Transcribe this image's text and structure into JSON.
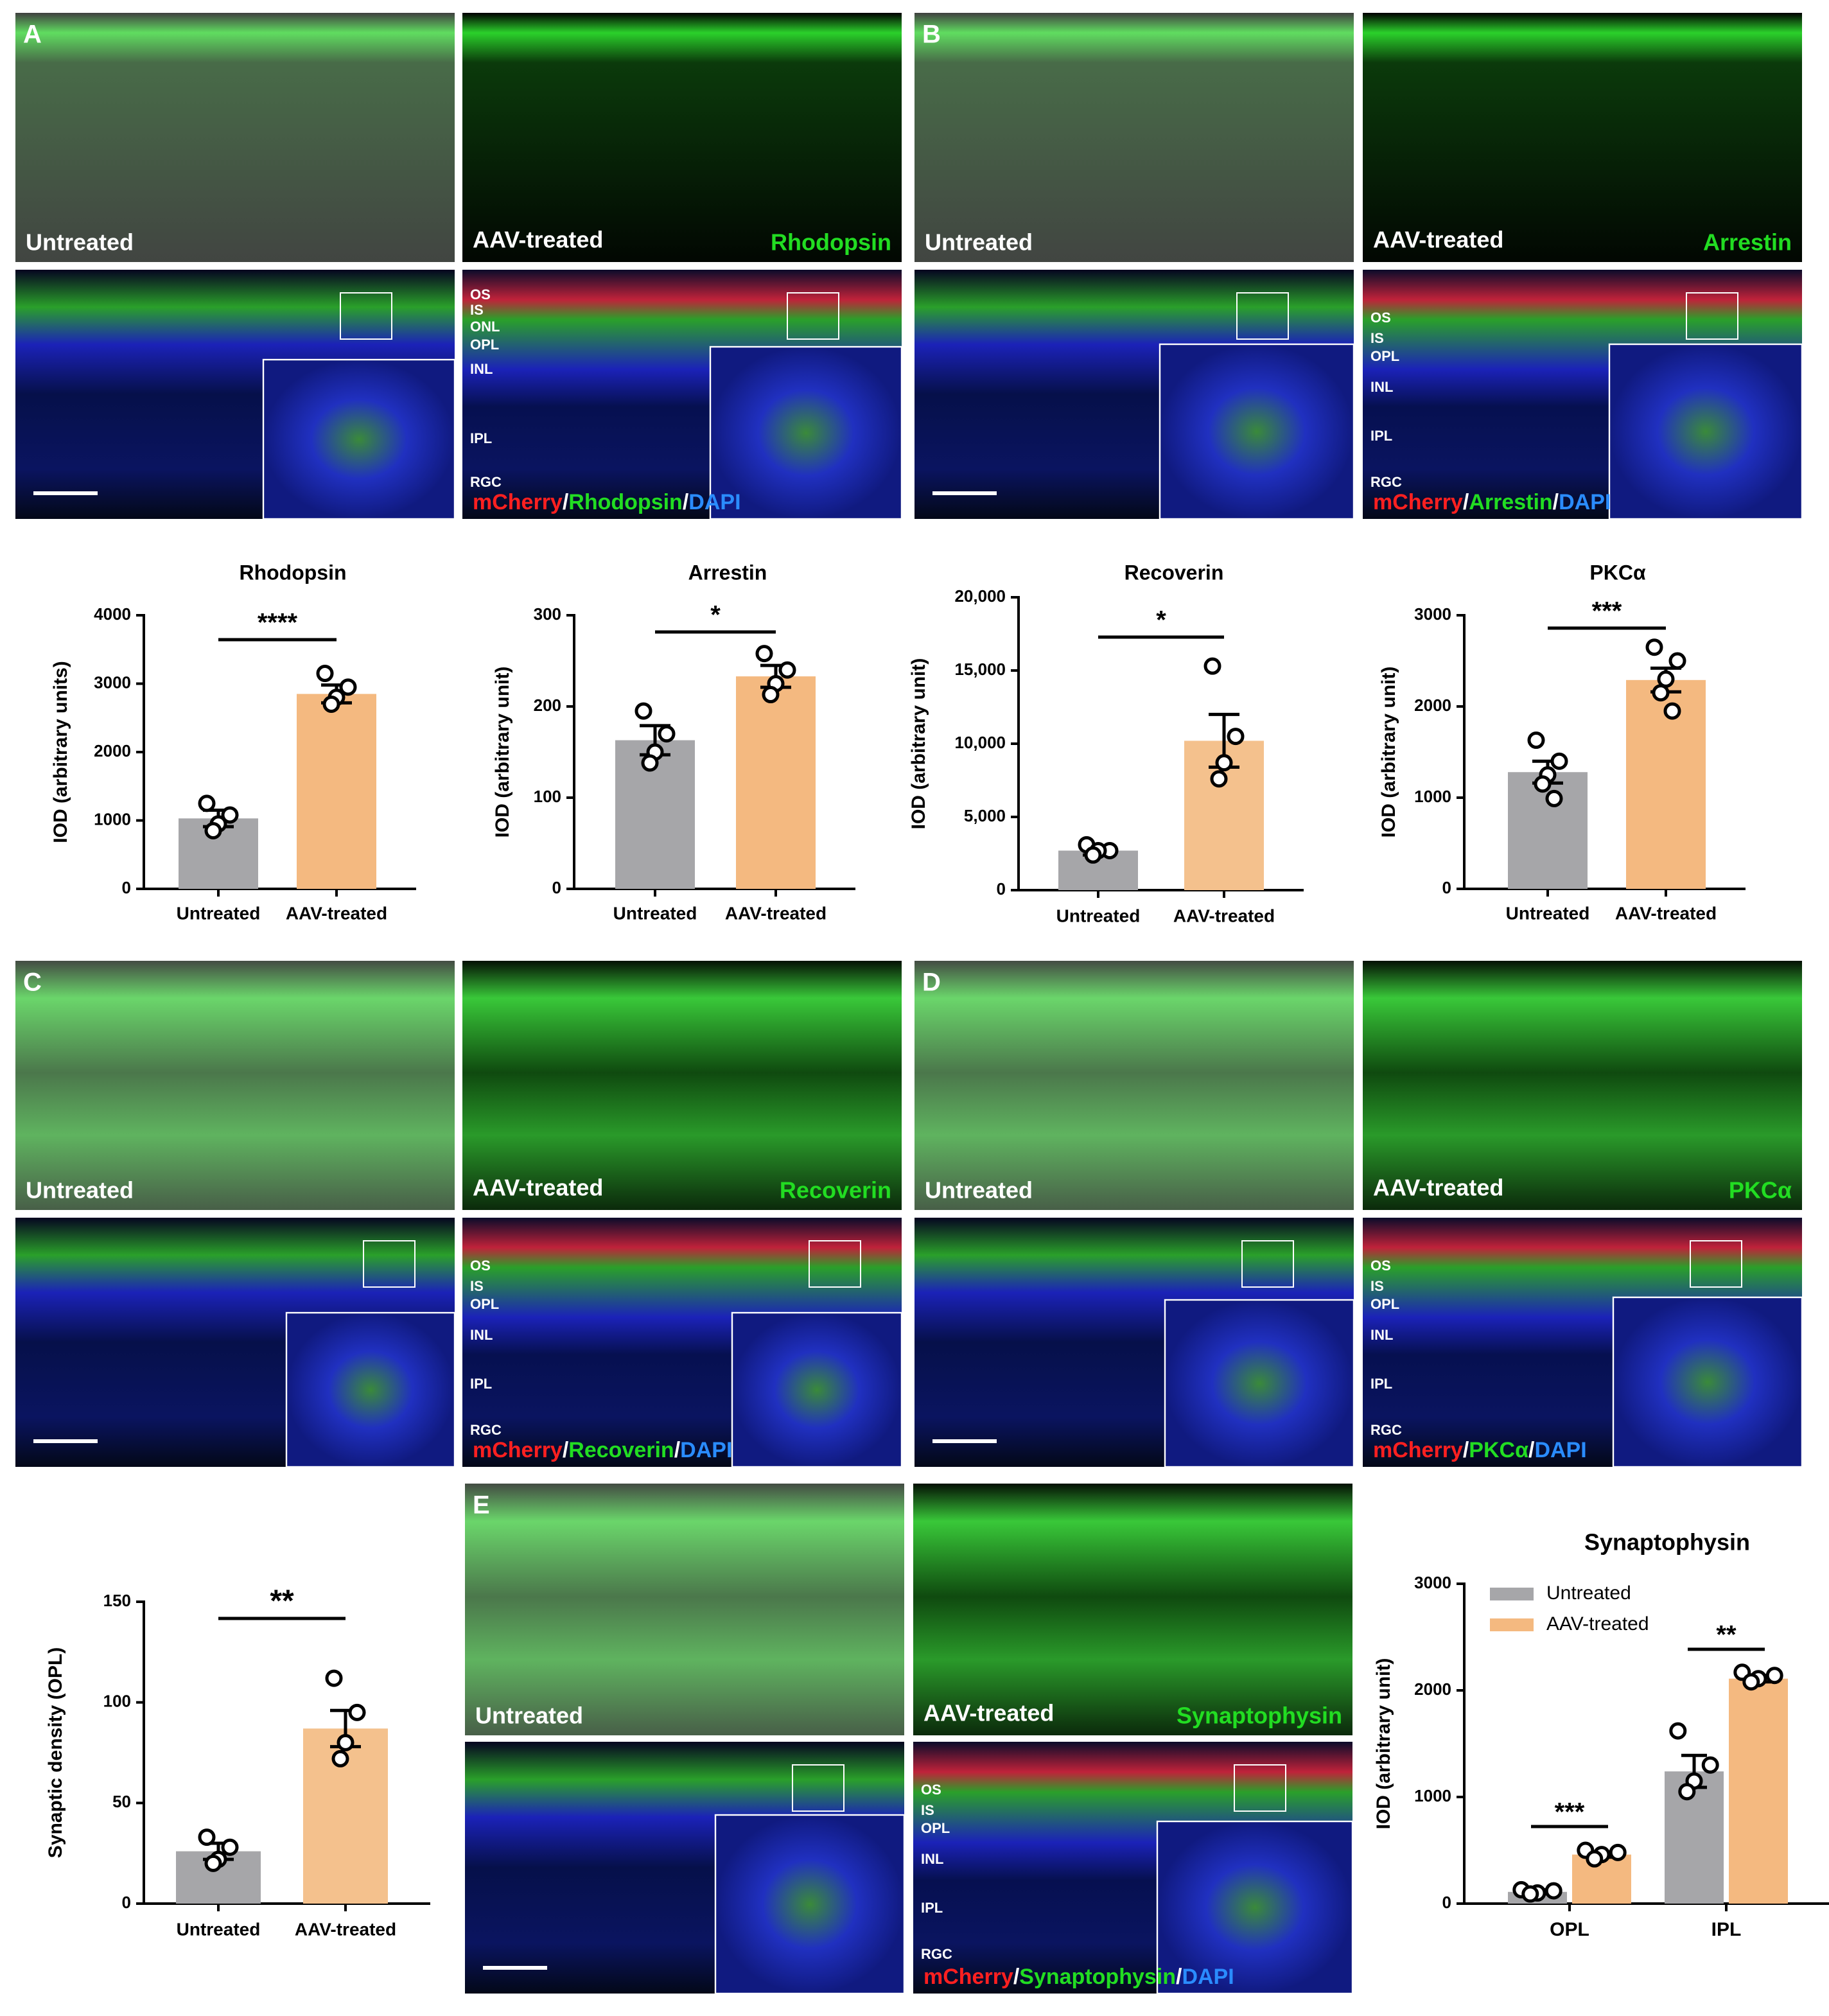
{
  "panels": [
    {
      "letter": "A",
      "untreated": "Untreated",
      "treated": "AAV-treated",
      "marker": "Rhodopsin",
      "layers": [
        "OS",
        "IS",
        "ONL",
        "OPL",
        "INL",
        "IPL",
        "RGC"
      ],
      "stain": [
        "mCherry",
        "/",
        "Rhodopsin",
        "/",
        "DAPI"
      ]
    },
    {
      "letter": "B",
      "untreated": "Untreated",
      "treated": "AAV-treated",
      "marker": "Arrestin",
      "layers": [
        "OS",
        "IS",
        "OPL",
        "INL",
        "IPL",
        "RGC"
      ],
      "stain": [
        "mCherry",
        "/",
        "Arrestin",
        "/",
        "DAPI"
      ]
    },
    {
      "letter": "C",
      "untreated": "Untreated",
      "treated": "AAV-treated",
      "marker": "Recoverin",
      "layers": [
        "OS",
        "IS",
        "OPL",
        "INL",
        "IPL",
        "RGC"
      ],
      "stain": [
        "mCherry",
        "/",
        "Recoverin",
        "/",
        "DAPI"
      ]
    },
    {
      "letter": "D",
      "untreated": "Untreated",
      "treated": "AAV-treated",
      "marker": "PKCα",
      "layers": [
        "OS",
        "IS",
        "OPL",
        "INL",
        "IPL",
        "RGC"
      ],
      "stain": [
        "mCherry",
        "/",
        "PKCα",
        "/",
        "DAPI"
      ]
    },
    {
      "letter": "E",
      "untreated": "Untreated",
      "treated": "AAV-treated",
      "marker": "Synaptophysin",
      "layers": [
        "OS",
        "IS",
        "OPL",
        "INL",
        "IPL",
        "RGC"
      ],
      "stain": [
        "mCherry",
        "/",
        "Synaptophysin",
        "/",
        "DAPI"
      ]
    }
  ],
  "chart_data": [
    {
      "type": "bar",
      "title": "Rhodopsin",
      "y_label": "IOD (arbitrary units)",
      "categories": [
        "Untreated",
        "AAV-treated"
      ],
      "values": [
        1030,
        2850
      ],
      "errors": [
        120,
        130
      ],
      "points": [
        [
          1250,
          1080,
          950,
          850
        ],
        [
          3150,
          2950,
          2800,
          2700
        ]
      ],
      "colors": [
        "#a6a6a9",
        "#f4b980"
      ],
      "ylim": [
        0,
        4000
      ],
      "yticks": [
        0,
        1000,
        2000,
        3000,
        4000
      ],
      "significance": "****"
    },
    {
      "type": "bar",
      "title": "Arrestin",
      "y_label": "IOD (arbitrary unit)",
      "categories": [
        "Untreated",
        "AAV-treated"
      ],
      "values": [
        163,
        233
      ],
      "errors": [
        16,
        12
      ],
      "points": [
        [
          195,
          170,
          150,
          138
        ],
        [
          258,
          240,
          225,
          213
        ]
      ],
      "colors": [
        "#a6a6a9",
        "#f4b980"
      ],
      "ylim": [
        0,
        300
      ],
      "yticks": [
        0,
        100,
        200,
        300
      ],
      "significance": "*"
    },
    {
      "type": "bar",
      "title": "Recoverin",
      "y_label": "IOD (arbitrary unit)",
      "categories": [
        "Untreated",
        "AAV-treated"
      ],
      "values": [
        2700,
        10200
      ],
      "errors": [
        300,
        1800
      ],
      "points": [
        [
          3100,
          2700,
          2700,
          2400
        ],
        [
          15300,
          10500,
          8700,
          7600
        ]
      ],
      "colors": [
        "#a6a6a9",
        "#f4c18d"
      ],
      "ylim": [
        0,
        20000
      ],
      "yticks": [
        0,
        {
          "value": 5000,
          "label": "5,000"
        },
        {
          "value": 10000,
          "label": "10,000"
        },
        {
          "value": 15000,
          "label": "15,000"
        },
        {
          "value": 20000,
          "label": "20,000"
        }
      ],
      "significance": "*"
    },
    {
      "type": "bar",
      "title": "PKCα",
      "y_label": "IOD (arbitrary unit)",
      "categories": [
        "Untreated",
        "AAV-treated"
      ],
      "values": [
        1280,
        2290
      ],
      "errors": [
        120,
        130
      ],
      "points": [
        [
          1630,
          1400,
          1250,
          1150,
          990
        ],
        [
          2650,
          2500,
          2300,
          2150,
          1950
        ]
      ],
      "colors": [
        "#a6a6a9",
        "#f4b980"
      ],
      "ylim": [
        0,
        3000
      ],
      "yticks": [
        0,
        1000,
        2000,
        3000
      ],
      "significance": "***"
    },
    {
      "type": "bar",
      "y_label": "Synaptic density (OPL)",
      "categories": [
        "Untreated",
        "AAV-treated"
      ],
      "values": [
        26,
        87
      ],
      "errors": [
        4,
        9
      ],
      "points": [
        [
          33,
          28,
          22,
          20
        ],
        [
          112,
          95,
          80,
          72
        ]
      ],
      "colors": [
        "#a6a6a9",
        "#f4c18d"
      ],
      "ylim": [
        0,
        150
      ],
      "yticks": [
        0,
        50,
        100,
        150
      ],
      "significance": "**"
    },
    {
      "type": "grouped_bar",
      "title": "Synaptophysin",
      "y_label": "IOD (arbitrary unit)",
      "categories": [
        "OPL",
        "IPL"
      ],
      "series": [
        {
          "name": "Untreated",
          "color": "#a6a6a9",
          "values": [
            110,
            1240
          ],
          "errors": [
            20,
            150
          ],
          "points": [
            [
              130,
              120,
              100,
              90
            ],
            [
              1620,
              1300,
              1150,
              1050
            ]
          ]
        },
        {
          "name": "AAV-treated",
          "color": "#f4b980",
          "values": [
            460,
            2110
          ],
          "errors": [
            25,
            30
          ],
          "points": [
            [
              500,
              480,
              460,
              420
            ],
            [
              2170,
              2140,
              2110,
              2080
            ]
          ]
        }
      ],
      "ylim": [
        0,
        3000
      ],
      "yticks": [
        0,
        1000,
        2000,
        3000
      ],
      "significance": [
        "***",
        "**"
      ],
      "legend": "upper left"
    }
  ]
}
